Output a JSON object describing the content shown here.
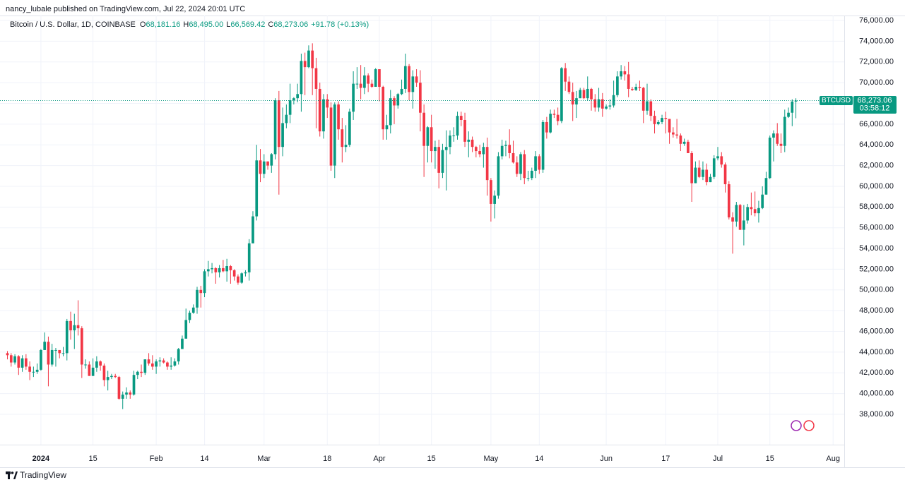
{
  "header": {
    "publisher": "nancy_lubale published on TradingView.com, Jul 22, 2024 20:01 UTC"
  },
  "footer": {
    "brand": "TradingView"
  },
  "chart_data": {
    "type": "candlestick",
    "legend": {
      "symbol": "Bitcoin / U.S. Dollar, 1D, COINBASE",
      "ohlc": [
        {
          "key": "O",
          "value": "68,181.16"
        },
        {
          "key": "H",
          "value": "68,495.00"
        },
        {
          "key": "L",
          "value": "66,569.42"
        },
        {
          "key": "C",
          "value": "68,273.06"
        }
      ],
      "change": "+91.78 (+0.13%)"
    },
    "price_tag": {
      "symbol": "BTCUSD",
      "price": "68,273.06",
      "countdown": "03:58:12"
    },
    "up_color": "#089981",
    "down_color": "#f23645",
    "grid": true,
    "xlim": [
      "2023-12-21",
      "2024-08-04"
    ],
    "xticks": [
      {
        "value": "2024-01-01",
        "label": "2024"
      },
      {
        "value": "2024-01-15",
        "label": "15"
      },
      {
        "value": "2024-02-01",
        "label": "Feb"
      },
      {
        "value": "2024-02-14",
        "label": "14"
      },
      {
        "value": "2024-03-01",
        "label": "Mar"
      },
      {
        "value": "2024-03-18",
        "label": "18"
      },
      {
        "value": "2024-04-01",
        "label": "Apr"
      },
      {
        "value": "2024-04-15",
        "label": "15"
      },
      {
        "value": "2024-05-01",
        "label": "May"
      },
      {
        "value": "2024-05-14",
        "label": "14"
      },
      {
        "value": "2024-06-01",
        "label": "Jun"
      },
      {
        "value": "2024-06-17",
        "label": "17"
      },
      {
        "value": "2024-07-01",
        "label": "Jul"
      },
      {
        "value": "2024-07-15",
        "label": "15"
      },
      {
        "value": "2024-08-01",
        "label": "Aug"
      }
    ],
    "ylim": [
      35070,
      76480
    ],
    "yticks": [
      {
        "value": 38000,
        "label": "38,000.00"
      },
      {
        "value": 40000,
        "label": "40,000.00"
      },
      {
        "value": 42000,
        "label": "42,000.00"
      },
      {
        "value": 44000,
        "label": "44,000.00"
      },
      {
        "value": 46000,
        "label": "46,000.00"
      },
      {
        "value": 48000,
        "label": "48,000.00"
      },
      {
        "value": 50000,
        "label": "50,000.00"
      },
      {
        "value": 52000,
        "label": "52,000.00"
      },
      {
        "value": 54000,
        "label": "54,000.00"
      },
      {
        "value": 56000,
        "label": "56,000.00"
      },
      {
        "value": 58000,
        "label": "58,000.00"
      },
      {
        "value": 60000,
        "label": "60,000.00"
      },
      {
        "value": 62000,
        "label": "62,000.00"
      },
      {
        "value": 64000,
        "label": "64,000.00"
      },
      {
        "value": 66000,
        "label": "66,000.00"
      },
      {
        "value": 68000,
        "label": "68,000.00"
      },
      {
        "value": 70000,
        "label": "70,000.00"
      },
      {
        "value": 72000,
        "label": "72,000.00"
      },
      {
        "value": 74000,
        "label": "74,000.00"
      },
      {
        "value": 76000,
        "label": "76,000.00"
      }
    ],
    "x": [
      "2023-12-23",
      "2023-12-24",
      "2023-12-25",
      "2023-12-26",
      "2023-12-27",
      "2023-12-28",
      "2023-12-29",
      "2023-12-30",
      "2023-12-31",
      "2024-01-01",
      "2024-01-02",
      "2024-01-03",
      "2024-01-04",
      "2024-01-05",
      "2024-01-06",
      "2024-01-07",
      "2024-01-08",
      "2024-01-09",
      "2024-01-10",
      "2024-01-11",
      "2024-01-12",
      "2024-01-13",
      "2024-01-14",
      "2024-01-15",
      "2024-01-16",
      "2024-01-17",
      "2024-01-18",
      "2024-01-19",
      "2024-01-20",
      "2024-01-21",
      "2024-01-22",
      "2024-01-23",
      "2024-01-24",
      "2024-01-25",
      "2024-01-26",
      "2024-01-27",
      "2024-01-28",
      "2024-01-29",
      "2024-01-30",
      "2024-01-31",
      "2024-02-01",
      "2024-02-02",
      "2024-02-03",
      "2024-02-04",
      "2024-02-05",
      "2024-02-06",
      "2024-02-07",
      "2024-02-08",
      "2024-02-09",
      "2024-02-10",
      "2024-02-11",
      "2024-02-12",
      "2024-02-13",
      "2024-02-14",
      "2024-02-15",
      "2024-02-16",
      "2024-02-17",
      "2024-02-18",
      "2024-02-19",
      "2024-02-20",
      "2024-02-21",
      "2024-02-22",
      "2024-02-23",
      "2024-02-24",
      "2024-02-25",
      "2024-02-26",
      "2024-02-27",
      "2024-02-28",
      "2024-02-29",
      "2024-03-01",
      "2024-03-02",
      "2024-03-03",
      "2024-03-04",
      "2024-03-05",
      "2024-03-06",
      "2024-03-07",
      "2024-03-08",
      "2024-03-09",
      "2024-03-10",
      "2024-03-11",
      "2024-03-12",
      "2024-03-13",
      "2024-03-14",
      "2024-03-15",
      "2024-03-16",
      "2024-03-17",
      "2024-03-18",
      "2024-03-19",
      "2024-03-20",
      "2024-03-21",
      "2024-03-22",
      "2024-03-23",
      "2024-03-24",
      "2024-03-25",
      "2024-03-26",
      "2024-03-27",
      "2024-03-28",
      "2024-03-29",
      "2024-03-30",
      "2024-03-31",
      "2024-04-01",
      "2024-04-02",
      "2024-04-03",
      "2024-04-04",
      "2024-04-05",
      "2024-04-06",
      "2024-04-07",
      "2024-04-08",
      "2024-04-09",
      "2024-04-10",
      "2024-04-11",
      "2024-04-12",
      "2024-04-13",
      "2024-04-14",
      "2024-04-15",
      "2024-04-16",
      "2024-04-17",
      "2024-04-18",
      "2024-04-19",
      "2024-04-20",
      "2024-04-21",
      "2024-04-22",
      "2024-04-23",
      "2024-04-24",
      "2024-04-25",
      "2024-04-26",
      "2024-04-27",
      "2024-04-28",
      "2024-04-29",
      "2024-04-30",
      "2024-05-01",
      "2024-05-02",
      "2024-05-03",
      "2024-05-04",
      "2024-05-05",
      "2024-05-06",
      "2024-05-07",
      "2024-05-08",
      "2024-05-09",
      "2024-05-10",
      "2024-05-11",
      "2024-05-12",
      "2024-05-13",
      "2024-05-14",
      "2024-05-15",
      "2024-05-16",
      "2024-05-17",
      "2024-05-18",
      "2024-05-19",
      "2024-05-20",
      "2024-05-21",
      "2024-05-22",
      "2024-05-23",
      "2024-05-24",
      "2024-05-25",
      "2024-05-26",
      "2024-05-27",
      "2024-05-28",
      "2024-05-29",
      "2024-05-30",
      "2024-05-31",
      "2024-06-01",
      "2024-06-02",
      "2024-06-03",
      "2024-06-04",
      "2024-06-05",
      "2024-06-06",
      "2024-06-07",
      "2024-06-08",
      "2024-06-09",
      "2024-06-10",
      "2024-06-11",
      "2024-06-12",
      "2024-06-13",
      "2024-06-14",
      "2024-06-15",
      "2024-06-16",
      "2024-06-17",
      "2024-06-18",
      "2024-06-19",
      "2024-06-20",
      "2024-06-21",
      "2024-06-22",
      "2024-06-23",
      "2024-06-24",
      "2024-06-25",
      "2024-06-26",
      "2024-06-27",
      "2024-06-28",
      "2024-06-29",
      "2024-06-30",
      "2024-07-01",
      "2024-07-02",
      "2024-07-03",
      "2024-07-04",
      "2024-07-05",
      "2024-07-06",
      "2024-07-07",
      "2024-07-08",
      "2024-07-09",
      "2024-07-10",
      "2024-07-11",
      "2024-07-12",
      "2024-07-13",
      "2024-07-14",
      "2024-07-15",
      "2024-07-16",
      "2024-07-17",
      "2024-07-18",
      "2024-07-19",
      "2024-07-20",
      "2024-07-21",
      "2024-07-22"
    ],
    "open": [
      43900,
      43700,
      43000,
      43600,
      42500,
      43400,
      42600,
      42100,
      42100,
      42300,
      44200,
      45000,
      42800,
      44200,
      44200,
      43900,
      43900,
      47000,
      46100,
      46600,
      46300,
      42800,
      42800,
      41700,
      42500,
      43100,
      42700,
      41300,
      41600,
      41700,
      41600,
      39500,
      39900,
      40100,
      39900,
      41800,
      42100,
      42000,
      43300,
      42900,
      42600,
      43100,
      43200,
      43000,
      42600,
      42700,
      43100,
      44300,
      45300,
      47100,
      47800,
      48300,
      50000,
      49700,
      51800,
      52000,
      52100,
      51700,
      52100,
      51800,
      52300,
      51900,
      51300,
      50700,
      51600,
      51700,
      54500,
      57100,
      62500,
      61200,
      62400,
      62000,
      63100,
      68300,
      63800,
      66100,
      66900,
      68300,
      68500,
      68900,
      72100,
      71500,
      73100,
      71400,
      69400,
      65300,
      68400,
      67600,
      62000,
      67900,
      65500,
      63800,
      64000,
      67200,
      69900,
      69900,
      69500,
      70700,
      69900,
      69600,
      71300,
      69600,
      65500,
      65900,
      68500,
      67800,
      68900,
      69400,
      71600,
      69100,
      70600,
      70000,
      67100,
      63900,
      65700,
      63400,
      63800,
      61300,
      63500,
      63800,
      64900,
      64900,
      66800,
      66400,
      64300,
      64500,
      63800,
      63400,
      63100,
      63800,
      60600,
      58300,
      59100,
      62900,
      63900,
      64000,
      63200,
      62300,
      61200,
      63100,
      60800,
      60800,
      61500,
      62900,
      61600,
      66200,
      65200,
      67000,
      66900,
      66300,
      71400,
      70100,
      69100,
      67900,
      68500,
      69300,
      68500,
      69400,
      68400,
      67600,
      68400,
      67500,
      67700,
      67800,
      68800,
      70600,
      71100,
      70800,
      69400,
      69300,
      69600,
      69500,
      67300,
      68200,
      66800,
      66000,
      66200,
      66600,
      66500,
      65200,
      65000,
      64900,
      64100,
      64300,
      63200,
      60300,
      61800,
      60900,
      61600,
      60400,
      60900,
      62700,
      62900,
      62100,
      60200,
      57000,
      56600,
      58200,
      55800,
      56700,
      58000,
      57800,
      57400,
      57900,
      59200,
      60800,
      64700,
      65100,
      64100,
      63900,
      66700,
      67100,
      68181.16
    ],
    "high": [
      44100,
      43900,
      43800,
      43700,
      43700,
      43800,
      43100,
      42600,
      42900,
      44300,
      45900,
      45500,
      44800,
      44400,
      44200,
      44500,
      47200,
      47900,
      47700,
      49000,
      46500,
      43300,
      43100,
      43400,
      43600,
      43200,
      42900,
      42200,
      41900,
      41900,
      41700,
      40200,
      40600,
      40300,
      42200,
      42200,
      42800,
      43300,
      43900,
      43700,
      43300,
      43500,
      43400,
      43100,
      43500,
      43400,
      44400,
      45600,
      48200,
      48000,
      48600,
      50300,
      50400,
      52000,
      52800,
      52600,
      52200,
      52400,
      52900,
      53000,
      52400,
      52000,
      51500,
      51700,
      51900,
      54900,
      57600,
      64000,
      63600,
      63100,
      62400,
      63200,
      68500,
      69200,
      67600,
      67900,
      69900,
      68600,
      69900,
      72800,
      72900,
      73600,
      73800,
      72400,
      70000,
      68900,
      68900,
      68100,
      68100,
      68200,
      66600,
      65900,
      67500,
      71100,
      71500,
      71700,
      71500,
      70900,
      70300,
      71400,
      71300,
      69700,
      66900,
      69300,
      68700,
      69000,
      70300,
      72800,
      71800,
      71200,
      71300,
      71200,
      67900,
      65800,
      66900,
      64400,
      64500,
      64100,
      65400,
      65400,
      65700,
      67200,
      67200,
      67100,
      65300,
      64800,
      63900,
      64000,
      64200,
      64700,
      60800,
      59600,
      63300,
      64500,
      64400,
      65500,
      64400,
      62900,
      63300,
      63500,
      61500,
      61800,
      63400,
      63100,
      66400,
      66700,
      67400,
      67400,
      67600,
      71500,
      71900,
      70600,
      70000,
      69200,
      69500,
      69500,
      70600,
      69500,
      68900,
      69500,
      69000,
      67900,
      68400,
      70200,
      71100,
      71700,
      71600,
      72000,
      69600,
      69900,
      70200,
      69600,
      69900,
      68400,
      67300,
      66400,
      66900,
      67200,
      66500,
      65700,
      66500,
      65100,
      64600,
      64500,
      63400,
      62400,
      62500,
      62400,
      62200,
      61200,
      63000,
      63800,
      63300,
      62300,
      60500,
      57500,
      58500,
      58300,
      58200,
      58300,
      59400,
      59500,
      58600,
      60000,
      61400,
      64900,
      65400,
      66100,
      65100,
      67400,
      67600,
      68400,
      68495
    ],
    "low": [
      43300,
      42600,
      42800,
      41800,
      42100,
      42300,
      41300,
      41600,
      41900,
      42200,
      44200,
      40700,
      42600,
      42600,
      43400,
      43600,
      43200,
      45200,
      44300,
      45600,
      41500,
      42400,
      41700,
      41700,
      42100,
      42200,
      40700,
      40300,
      41400,
      41500,
      39400,
      38500,
      39500,
      39500,
      39800,
      41400,
      41600,
      41800,
      42700,
      42300,
      41900,
      42600,
      42900,
      42300,
      42300,
      42600,
      42800,
      44300,
      45300,
      46800,
      47700,
      47700,
      48300,
      49300,
      51300,
      51600,
      50600,
      51200,
      51700,
      50800,
      50600,
      50900,
      50500,
      50600,
      51300,
      50900,
      54500,
      56700,
      60400,
      60800,
      61600,
      61300,
      62600,
      59200,
      62900,
      65600,
      66100,
      67900,
      68100,
      67200,
      68800,
      71400,
      68800,
      65600,
      64800,
      64600,
      66600,
      61500,
      60800,
      64500,
      62300,
      63300,
      63800,
      66400,
      69400,
      68400,
      68900,
      69100,
      69500,
      69600,
      68200,
      64500,
      64500,
      65100,
      66000,
      67500,
      68800,
      69000,
      68300,
      67500,
      69600,
      65300,
      60900,
      62300,
      62300,
      61700,
      59800,
      60800,
      59600,
      63100,
      64300,
      64500,
      65800,
      63800,
      62800,
      63300,
      62800,
      62800,
      61800,
      59100,
      56600,
      56900,
      58800,
      62600,
      62900,
      62700,
      62200,
      60900,
      60600,
      60200,
      60500,
      60600,
      60800,
      61200,
      61300,
      64600,
      65100,
      66600,
      65900,
      66100,
      69200,
      68900,
      66300,
      66600,
      68500,
      68400,
      68300,
      67300,
      67200,
      67200,
      66700,
      67400,
      67400,
      67600,
      68600,
      70300,
      70200,
      68600,
      69200,
      69200,
      69200,
      66100,
      66900,
      66300,
      65100,
      65900,
      66000,
      65100,
      64100,
      64700,
      64600,
      63400,
      63900,
      63200,
      58500,
      60300,
      60800,
      60600,
      60100,
      60400,
      60700,
      62500,
      61800,
      59400,
      56800,
      53500,
      56100,
      55800,
      54300,
      56400,
      57200,
      57100,
      56500,
      57800,
      59200,
      60700,
      62400,
      63900,
      63200,
      63300,
      66600,
      65800,
      66569.42
    ],
    "close": [
      43700,
      43000,
      43600,
      42500,
      43400,
      42600,
      42100,
      42100,
      42300,
      44200,
      45000,
      42800,
      44200,
      44200,
      43900,
      43900,
      47000,
      46100,
      46600,
      46300,
      42800,
      42800,
      41700,
      42500,
      43100,
      42700,
      41300,
      41600,
      41700,
      41600,
      39500,
      39900,
      40100,
      39900,
      41800,
      42100,
      42000,
      43300,
      42900,
      42600,
      43100,
      43200,
      43000,
      42600,
      42700,
      43100,
      44300,
      45300,
      47100,
      47800,
      48300,
      50000,
      49700,
      51800,
      52000,
      52100,
      51700,
      52100,
      51800,
      52300,
      51900,
      51300,
      50700,
      51600,
      51700,
      54500,
      57100,
      62500,
      61200,
      62400,
      62000,
      63100,
      68300,
      63800,
      66100,
      66900,
      68300,
      68500,
      68900,
      72100,
      71500,
      73100,
      71400,
      69400,
      65300,
      68400,
      67600,
      62000,
      67900,
      65500,
      63800,
      64000,
      67200,
      69900,
      69900,
      69500,
      70700,
      69900,
      69600,
      71300,
      69600,
      65500,
      65900,
      68500,
      67800,
      68900,
      69400,
      71600,
      69100,
      70600,
      70000,
      67100,
      63900,
      65700,
      63400,
      63800,
      61300,
      63500,
      63800,
      64900,
      64900,
      66800,
      66400,
      64300,
      64500,
      63800,
      63400,
      63100,
      63800,
      60600,
      58300,
      59100,
      62900,
      63900,
      64000,
      63200,
      62300,
      61200,
      63100,
      60800,
      60800,
      61500,
      62900,
      61600,
      66200,
      65200,
      67000,
      66900,
      66300,
      71400,
      70100,
      69100,
      67900,
      68500,
      69300,
      68500,
      69400,
      68400,
      67600,
      68400,
      67500,
      67700,
      67800,
      68800,
      70600,
      71100,
      70800,
      69400,
      69300,
      69600,
      69500,
      67300,
      68200,
      66800,
      66000,
      66200,
      66600,
      66500,
      65200,
      65000,
      64900,
      64100,
      64300,
      63200,
      60300,
      61800,
      60900,
      61600,
      60400,
      60900,
      62700,
      62900,
      62100,
      60200,
      57000,
      56600,
      58200,
      55800,
      56700,
      58000,
      57800,
      57400,
      57900,
      59200,
      60800,
      64700,
      65100,
      64100,
      63900,
      66700,
      67100,
      68181.16,
      68273.06
    ]
  }
}
